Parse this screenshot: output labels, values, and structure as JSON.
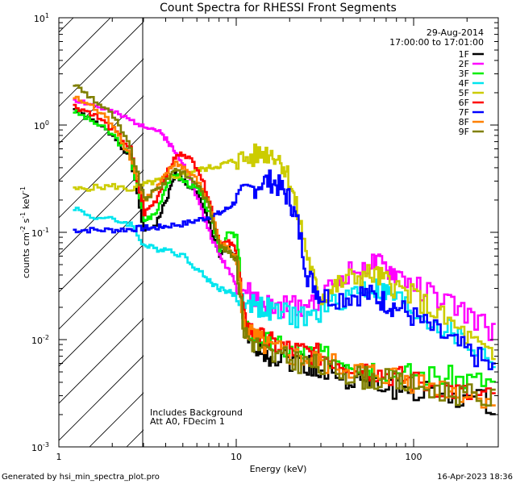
{
  "chart_data": {
    "type": "line",
    "title": "Count Spectra for RHESSI Front Segments",
    "xlabel": "Energy (keV)",
    "ylabel_parts": {
      "base": "counts cm",
      "exp1": "-2",
      "mid1": " s",
      "exp2": "-1",
      "mid2": " keV",
      "exp3": "-1"
    },
    "x_scale": "log",
    "y_scale": "log",
    "xlim": [
      1,
      300
    ],
    "ylim": [
      0.001,
      10
    ],
    "x_major_ticks": [
      1,
      10,
      100
    ],
    "x_tick_labels": [
      "1",
      "10",
      "100"
    ],
    "y_major_ticks": [
      0.001,
      0.01,
      0.1,
      1,
      10
    ],
    "y_tick_label_base": "10",
    "y_tick_label_exponents": [
      "-3",
      "-2",
      "-1",
      "0",
      "1"
    ],
    "shaded_region": {
      "x_min": 1,
      "x_max": 3,
      "style": "diagonal-hatch"
    },
    "annotations": {
      "date": "29-Aug-2014",
      "time_range": "17:00:00 to 17:01:00",
      "bottom_left_line1": "Includes Background",
      "bottom_left_line2": "Att A0, FDecim 1"
    },
    "legend_position": "top-right",
    "series": [
      {
        "name": "1F",
        "color": "#000000",
        "points": [
          [
            1.2,
            1.4
          ],
          [
            1.5,
            1.1
          ],
          [
            2.0,
            0.8
          ],
          [
            2.5,
            0.5
          ],
          [
            3.0,
            0.1
          ],
          [
            3.5,
            0.12
          ],
          [
            4.0,
            0.2
          ],
          [
            4.5,
            0.35
          ],
          [
            5.0,
            0.3
          ],
          [
            6.0,
            0.22
          ],
          [
            7.0,
            0.12
          ],
          [
            8.0,
            0.06
          ],
          [
            9.0,
            0.07
          ],
          [
            10.0,
            0.055
          ],
          [
            11.0,
            0.012
          ],
          [
            12.0,
            0.01
          ],
          [
            14.0,
            0.008
          ],
          [
            16.0,
            0.007
          ],
          [
            20.0,
            0.0065
          ],
          [
            25.0,
            0.006
          ],
          [
            30.0,
            0.005
          ],
          [
            40.0,
            0.0045
          ],
          [
            50.0,
            0.004
          ],
          [
            60.0,
            0.0038
          ],
          [
            80.0,
            0.0035
          ],
          [
            100.0,
            0.0033
          ],
          [
            150.0,
            0.003
          ],
          [
            200.0,
            0.0028
          ],
          [
            290.0,
            0.0025
          ]
        ]
      },
      {
        "name": "2F",
        "color": "#ff00ff",
        "points": [
          [
            1.2,
            1.75
          ],
          [
            1.5,
            1.55
          ],
          [
            2.0,
            1.3
          ],
          [
            2.5,
            1.1
          ],
          [
            3.0,
            1.0
          ],
          [
            3.5,
            0.9
          ],
          [
            4.0,
            0.75
          ],
          [
            4.5,
            0.55
          ],
          [
            5.0,
            0.45
          ],
          [
            6.0,
            0.2
          ],
          [
            7.0,
            0.1
          ],
          [
            8.0,
            0.06
          ],
          [
            9.0,
            0.045
          ],
          [
            10.0,
            0.033
          ],
          [
            12.0,
            0.025
          ],
          [
            14.0,
            0.022
          ],
          [
            16.0,
            0.02
          ],
          [
            20.0,
            0.02
          ],
          [
            25.0,
            0.022
          ],
          [
            30.0,
            0.025
          ],
          [
            40.0,
            0.04
          ],
          [
            50.0,
            0.047
          ],
          [
            60.0,
            0.05
          ],
          [
            70.0,
            0.045
          ],
          [
            80.0,
            0.04
          ],
          [
            100.0,
            0.032
          ],
          [
            130.0,
            0.025
          ],
          [
            170.0,
            0.02
          ],
          [
            220.0,
            0.015
          ],
          [
            290.0,
            0.011
          ]
        ]
      },
      {
        "name": "3F",
        "color": "#00ee00",
        "points": [
          [
            1.2,
            1.35
          ],
          [
            1.5,
            1.1
          ],
          [
            2.0,
            0.8
          ],
          [
            2.5,
            0.5
          ],
          [
            3.0,
            0.13
          ],
          [
            3.5,
            0.15
          ],
          [
            4.0,
            0.28
          ],
          [
            4.5,
            0.35
          ],
          [
            5.0,
            0.3
          ],
          [
            6.0,
            0.25
          ],
          [
            7.0,
            0.15
          ],
          [
            8.0,
            0.07
          ],
          [
            9.0,
            0.1
          ],
          [
            10.0,
            0.09
          ],
          [
            11.0,
            0.012
          ],
          [
            12.0,
            0.012
          ],
          [
            14.0,
            0.01
          ],
          [
            16.0,
            0.009
          ],
          [
            20.0,
            0.008
          ],
          [
            25.0,
            0.0075
          ],
          [
            30.0,
            0.007
          ],
          [
            40.0,
            0.0065
          ],
          [
            50.0,
            0.006
          ],
          [
            60.0,
            0.0055
          ],
          [
            80.0,
            0.005
          ],
          [
            100.0,
            0.0048
          ],
          [
            150.0,
            0.0045
          ],
          [
            200.0,
            0.0042
          ],
          [
            290.0,
            0.004
          ]
        ]
      },
      {
        "name": "4F",
        "color": "#00e5ee",
        "points": [
          [
            1.2,
            0.17
          ],
          [
            1.5,
            0.14
          ],
          [
            2.0,
            0.13
          ],
          [
            2.5,
            0.12
          ],
          [
            3.0,
            0.075
          ],
          [
            3.5,
            0.07
          ],
          [
            4.0,
            0.07
          ],
          [
            5.0,
            0.06
          ],
          [
            6.0,
            0.045
          ],
          [
            7.0,
            0.035
          ],
          [
            8.0,
            0.03
          ],
          [
            9.0,
            0.028
          ],
          [
            10.0,
            0.025
          ],
          [
            12.0,
            0.022
          ],
          [
            14.0,
            0.02
          ],
          [
            16.0,
            0.018
          ],
          [
            20.0,
            0.017
          ],
          [
            25.0,
            0.016
          ],
          [
            30.0,
            0.018
          ],
          [
            40.0,
            0.025
          ],
          [
            50.0,
            0.03
          ],
          [
            60.0,
            0.03
          ],
          [
            70.0,
            0.027
          ],
          [
            80.0,
            0.024
          ],
          [
            100.0,
            0.018
          ],
          [
            130.0,
            0.014
          ],
          [
            170.0,
            0.011
          ],
          [
            220.0,
            0.008
          ],
          [
            290.0,
            0.006
          ]
        ]
      },
      {
        "name": "5F",
        "color": "#cccc00",
        "points": [
          [
            1.2,
            0.25
          ],
          [
            1.5,
            0.26
          ],
          [
            2.0,
            0.27
          ],
          [
            2.5,
            0.25
          ],
          [
            3.0,
            0.28
          ],
          [
            3.5,
            0.3
          ],
          [
            4.0,
            0.32
          ],
          [
            5.0,
            0.35
          ],
          [
            6.0,
            0.38
          ],
          [
            7.0,
            0.4
          ],
          [
            8.0,
            0.42
          ],
          [
            9.0,
            0.45
          ],
          [
            10.0,
            0.47
          ],
          [
            12.0,
            0.5
          ],
          [
            14.0,
            0.55
          ],
          [
            16.0,
            0.55
          ],
          [
            18.0,
            0.45
          ],
          [
            20.0,
            0.3
          ],
          [
            22.0,
            0.15
          ],
          [
            25.0,
            0.06
          ],
          [
            28.0,
            0.03
          ],
          [
            30.0,
            0.025
          ],
          [
            35.0,
            0.03
          ],
          [
            40.0,
            0.035
          ],
          [
            50.0,
            0.04
          ],
          [
            60.0,
            0.04
          ],
          [
            70.0,
            0.035
          ],
          [
            80.0,
            0.03
          ],
          [
            100.0,
            0.025
          ],
          [
            130.0,
            0.018
          ],
          [
            170.0,
            0.013
          ],
          [
            220.0,
            0.009
          ],
          [
            290.0,
            0.006
          ]
        ]
      },
      {
        "name": "6F",
        "color": "#ff0000",
        "points": [
          [
            1.2,
            1.5
          ],
          [
            1.5,
            1.3
          ],
          [
            2.0,
            0.9
          ],
          [
            2.5,
            0.6
          ],
          [
            3.0,
            0.15
          ],
          [
            3.5,
            0.2
          ],
          [
            4.0,
            0.35
          ],
          [
            4.5,
            0.5
          ],
          [
            5.0,
            0.55
          ],
          [
            6.0,
            0.4
          ],
          [
            7.0,
            0.2
          ],
          [
            8.0,
            0.08
          ],
          [
            9.0,
            0.08
          ],
          [
            10.0,
            0.07
          ],
          [
            11.0,
            0.015
          ],
          [
            12.0,
            0.012
          ],
          [
            14.0,
            0.01
          ],
          [
            16.0,
            0.009
          ],
          [
            20.0,
            0.008
          ],
          [
            25.0,
            0.0075
          ],
          [
            30.0,
            0.007
          ],
          [
            40.0,
            0.006
          ],
          [
            50.0,
            0.0055
          ],
          [
            60.0,
            0.005
          ],
          [
            80.0,
            0.0045
          ],
          [
            100.0,
            0.004
          ],
          [
            150.0,
            0.0035
          ],
          [
            200.0,
            0.003
          ],
          [
            290.0,
            0.0028
          ]
        ]
      },
      {
        "name": "7F",
        "color": "#0000ff",
        "points": [
          [
            1.2,
            0.105
          ],
          [
            1.5,
            0.105
          ],
          [
            2.0,
            0.105
          ],
          [
            2.5,
            0.107
          ],
          [
            3.0,
            0.11
          ],
          [
            3.5,
            0.11
          ],
          [
            4.0,
            0.115
          ],
          [
            5.0,
            0.12
          ],
          [
            6.0,
            0.13
          ],
          [
            7.0,
            0.14
          ],
          [
            8.0,
            0.15
          ],
          [
            9.0,
            0.17
          ],
          [
            10.0,
            0.2
          ],
          [
            12.0,
            0.25
          ],
          [
            14.0,
            0.3
          ],
          [
            16.0,
            0.3
          ],
          [
            18.0,
            0.25
          ],
          [
            20.0,
            0.2
          ],
          [
            22.0,
            0.12
          ],
          [
            25.0,
            0.04
          ],
          [
            28.0,
            0.03
          ],
          [
            30.0,
            0.025
          ],
          [
            40.0,
            0.025
          ],
          [
            50.0,
            0.027
          ],
          [
            60.0,
            0.025
          ],
          [
            70.0,
            0.022
          ],
          [
            80.0,
            0.02
          ],
          [
            100.0,
            0.016
          ],
          [
            130.0,
            0.012
          ],
          [
            170.0,
            0.009
          ],
          [
            220.0,
            0.007
          ],
          [
            290.0,
            0.005
          ]
        ]
      },
      {
        "name": "8F",
        "color": "#ff8000",
        "points": [
          [
            1.2,
            1.8
          ],
          [
            1.5,
            1.5
          ],
          [
            2.0,
            1.0
          ],
          [
            2.5,
            0.5
          ],
          [
            3.0,
            0.2
          ],
          [
            3.5,
            0.25
          ],
          [
            4.0,
            0.35
          ],
          [
            4.5,
            0.45
          ],
          [
            5.0,
            0.4
          ],
          [
            6.0,
            0.3
          ],
          [
            7.0,
            0.18
          ],
          [
            8.0,
            0.08
          ],
          [
            9.0,
            0.07
          ],
          [
            10.0,
            0.06
          ],
          [
            11.0,
            0.013
          ],
          [
            12.0,
            0.011
          ],
          [
            14.0,
            0.009
          ],
          [
            16.0,
            0.008
          ],
          [
            20.0,
            0.007
          ],
          [
            25.0,
            0.0065
          ],
          [
            30.0,
            0.006
          ],
          [
            40.0,
            0.0055
          ],
          [
            50.0,
            0.005
          ],
          [
            60.0,
            0.0048
          ],
          [
            80.0,
            0.0045
          ],
          [
            100.0,
            0.004
          ],
          [
            150.0,
            0.0035
          ],
          [
            200.0,
            0.003
          ],
          [
            290.0,
            0.0028
          ]
        ]
      },
      {
        "name": "9F",
        "color": "#808000",
        "points": [
          [
            1.2,
            2.4
          ],
          [
            1.5,
            1.8
          ],
          [
            2.0,
            1.2
          ],
          [
            2.5,
            0.6
          ],
          [
            3.0,
            0.2
          ],
          [
            3.5,
            0.25
          ],
          [
            4.0,
            0.3
          ],
          [
            4.5,
            0.4
          ],
          [
            5.0,
            0.35
          ],
          [
            6.0,
            0.28
          ],
          [
            7.0,
            0.17
          ],
          [
            8.0,
            0.075
          ],
          [
            9.0,
            0.065
          ],
          [
            10.0,
            0.055
          ],
          [
            11.0,
            0.012
          ],
          [
            12.0,
            0.01
          ],
          [
            14.0,
            0.008
          ],
          [
            16.0,
            0.007
          ],
          [
            20.0,
            0.0065
          ],
          [
            25.0,
            0.006
          ],
          [
            30.0,
            0.0055
          ],
          [
            40.0,
            0.005
          ],
          [
            50.0,
            0.0045
          ],
          [
            60.0,
            0.0043
          ],
          [
            80.0,
            0.004
          ],
          [
            100.0,
            0.0037
          ],
          [
            150.0,
            0.0033
          ],
          [
            200.0,
            0.003
          ],
          [
            290.0,
            0.0027
          ]
        ]
      }
    ]
  },
  "footer": {
    "left": "Generated by hsi_min_spectra_plot.pro",
    "right": "16-Apr-2023 18:36"
  }
}
